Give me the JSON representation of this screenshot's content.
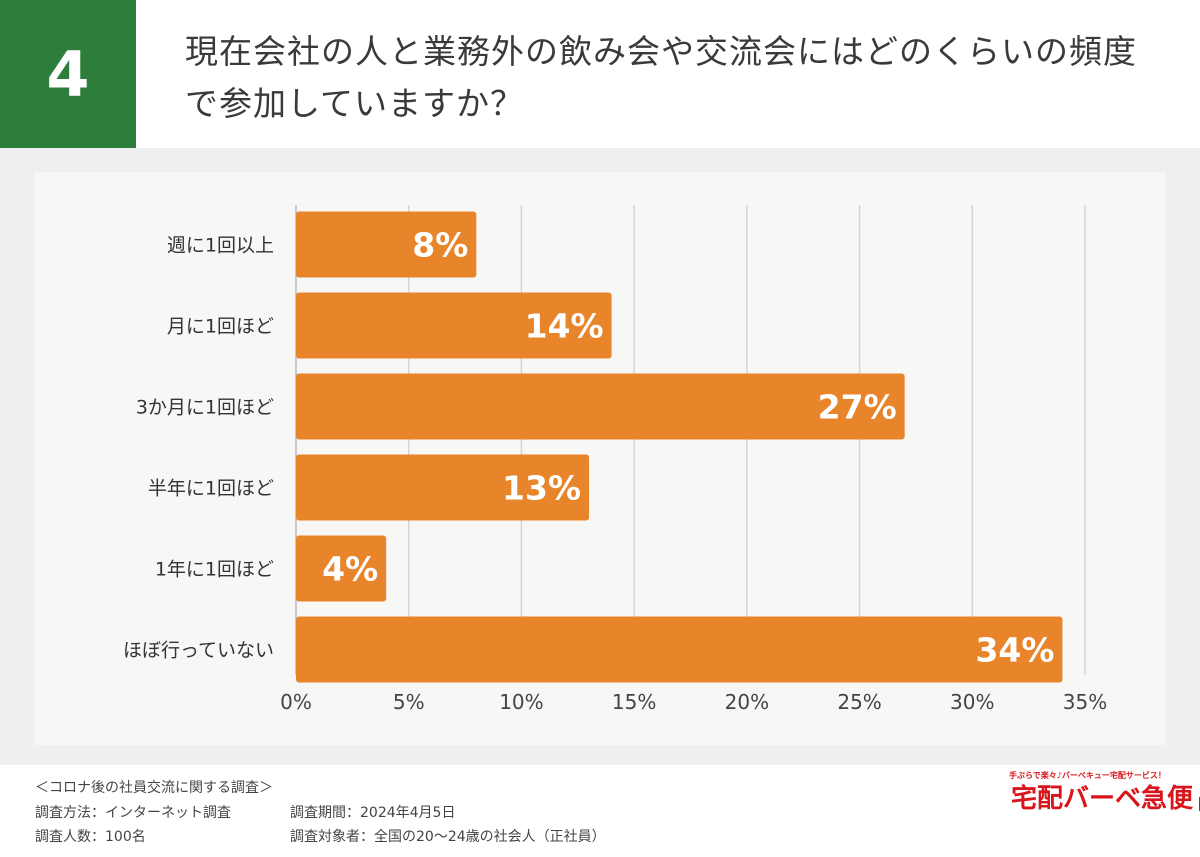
{
  "header": {
    "number": "4",
    "title": "現在会社の人と業務外の飲み会や交流会にはどのくらいの頻度で参加していますか？"
  },
  "chart_data": {
    "type": "bar",
    "orientation": "horizontal",
    "categories": [
      "週に1回以上",
      "月に1回ほど",
      "3か月に1回ほど",
      "半年に1回ほど",
      "1年に1回ほど",
      "ほぼ行っていない"
    ],
    "values": [
      8,
      14,
      27,
      13,
      4,
      34
    ],
    "data_labels": [
      "8%",
      "14%",
      "27%",
      "13%",
      "4%",
      "34%"
    ],
    "xlim": [
      0,
      35
    ],
    "xticks": [
      "0%",
      "5%",
      "10%",
      "15%",
      "20%",
      "25%",
      "30%",
      "35%"
    ],
    "grid": true,
    "bar_color": "#e8852a"
  },
  "footer": {
    "survey_title": "＜コロナ後の社員交流に関する調査＞",
    "method": "調査方法：インターネット調査",
    "period": "調査期間：2024年4月5日",
    "count": "調査人数：100名",
    "target": "調査対象者：全国の20〜24歳の社会人（正社員）"
  },
  "logo": {
    "tagline": "手ぶらで楽々♪バーベキュー宅配サービス！",
    "name": "宅配バーベ急便"
  }
}
